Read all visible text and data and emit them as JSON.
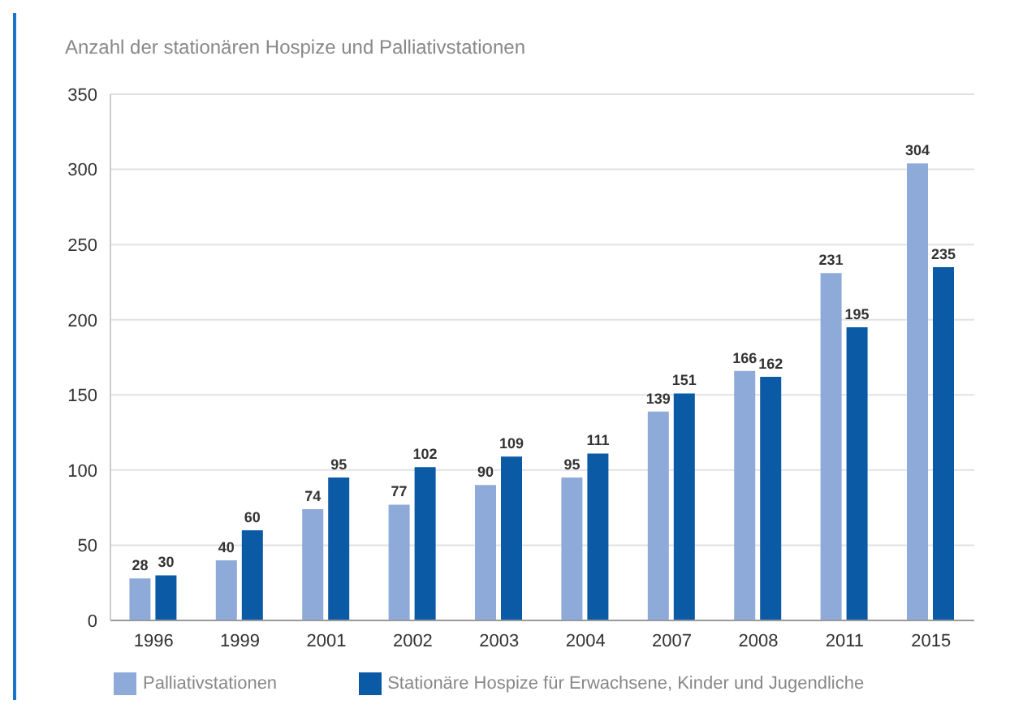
{
  "chart_data": {
    "type": "bar",
    "title": "Anzahl der stationären Hospize und Palliativstationen",
    "categories": [
      "1996",
      "1999",
      "2001",
      "2002",
      "2003",
      "2004",
      "2007",
      "2008",
      "2011",
      "2015"
    ],
    "series": [
      {
        "name": "Palliativstationen",
        "color": "#8eaad8",
        "values": [
          28,
          40,
          74,
          77,
          90,
          95,
          139,
          166,
          231,
          304
        ]
      },
      {
        "name": "Stationäre Hospize für Erwachsene, Kinder und Jugendliche",
        "color": "#0b5aa6",
        "values": [
          30,
          60,
          95,
          102,
          109,
          111,
          151,
          162,
          195,
          235
        ]
      }
    ],
    "ylim": [
      0,
      350
    ],
    "yticks": [
      0,
      50,
      100,
      150,
      200,
      250,
      300,
      350
    ],
    "grid": "y",
    "legend": "bottom",
    "data_labels": true
  }
}
